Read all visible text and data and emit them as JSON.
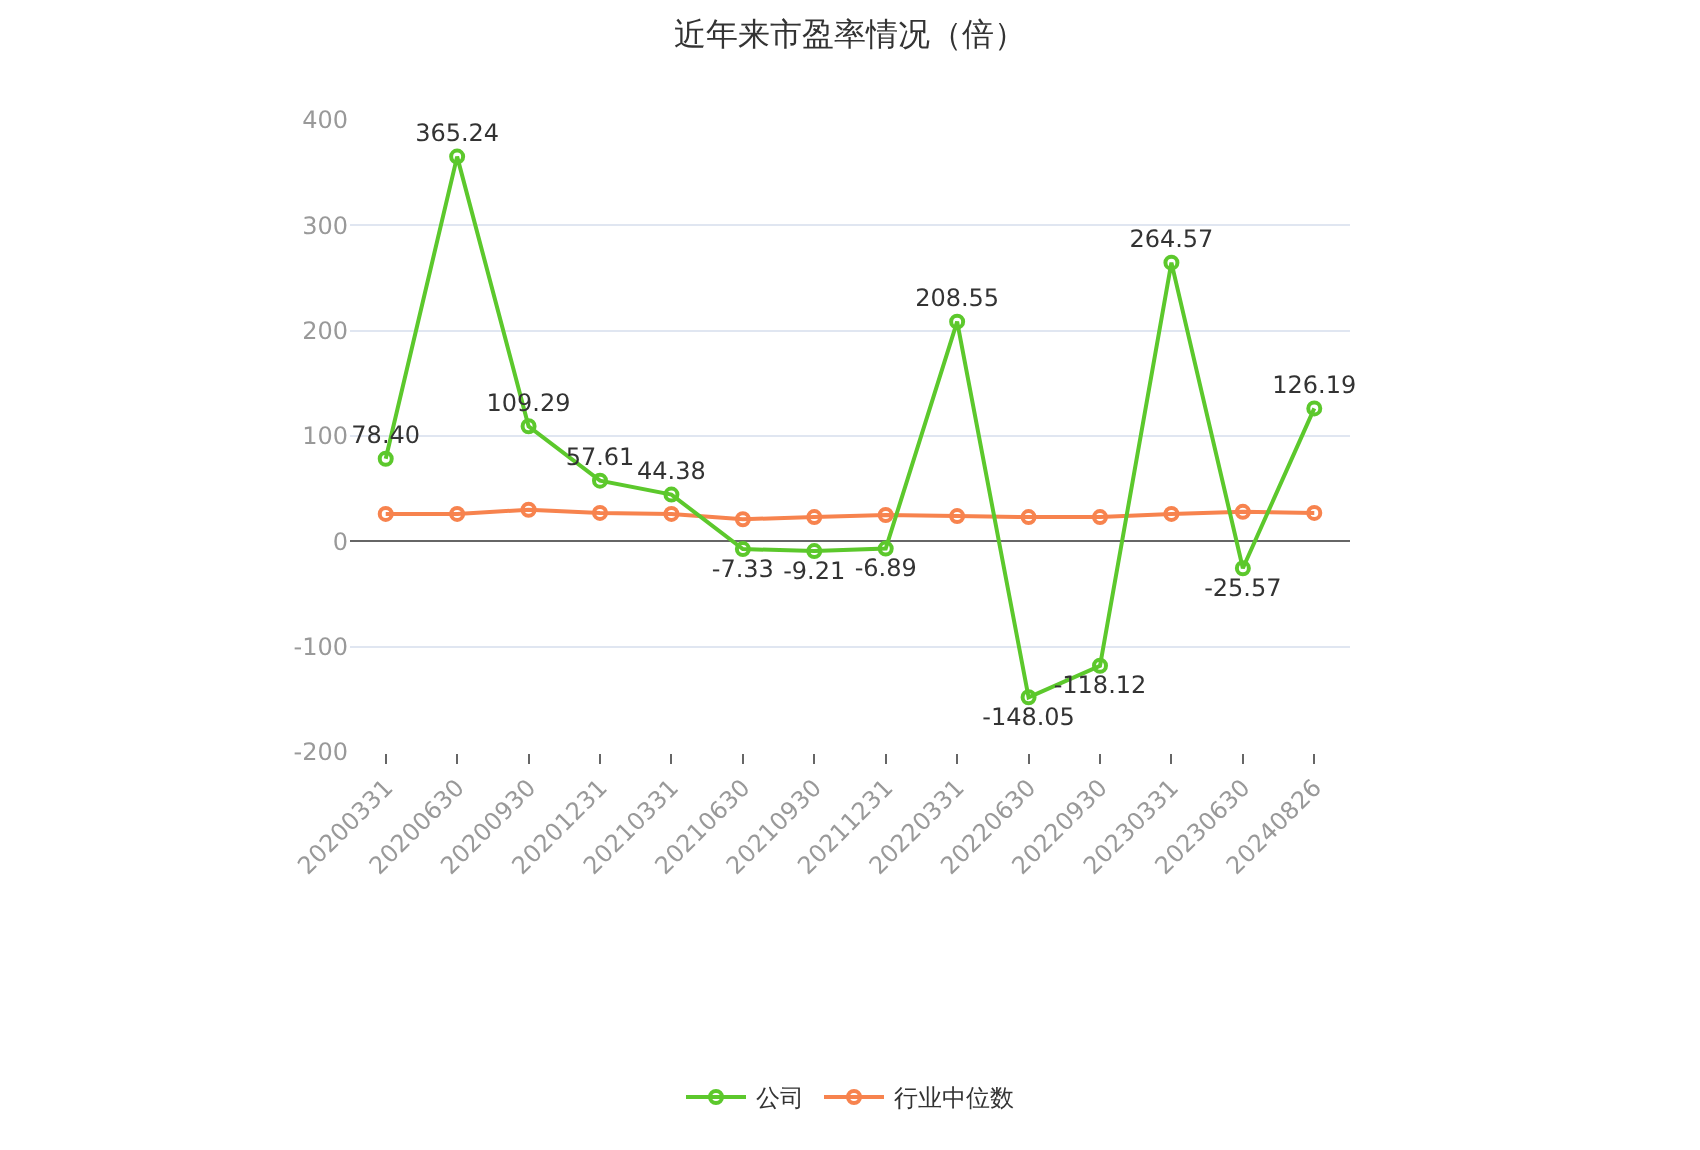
{
  "chart_data": {
    "type": "line",
    "title": "近年来市盈率情况（倍）",
    "categories": [
      "20200331",
      "20200630",
      "20200930",
      "20201231",
      "20210331",
      "20210630",
      "20210930",
      "20211231",
      "20220331",
      "20220630",
      "20220930",
      "20230331",
      "20230630",
      "20240826"
    ],
    "series": [
      {
        "name": "公司",
        "color": "#5cc82c",
        "values": [
          78.4,
          365.24,
          109.29,
          57.61,
          44.38,
          -7.33,
          -9.21,
          -6.89,
          208.55,
          -148.05,
          -118.12,
          264.57,
          -25.57,
          126.19
        ],
        "value_labels": [
          "78.40",
          "365.24",
          "109.29",
          "57.61",
          "44.38",
          "-7.33",
          "-9.21",
          "-6.89",
          "208.55",
          "-148.05",
          "-118.12",
          "264.57",
          "-25.57",
          "126.19"
        ]
      },
      {
        "name": "行业中位数",
        "color": "#f7834e",
        "values": [
          26,
          26,
          30,
          27,
          26,
          21,
          23,
          25,
          24,
          23,
          23,
          26,
          28,
          27
        ]
      }
    ],
    "ylim": [
      -200,
      400
    ],
    "yticks": [
      -200,
      -100,
      0,
      100,
      200,
      300,
      400
    ],
    "grid": "y",
    "legend": "bottom",
    "marker": "circle"
  }
}
